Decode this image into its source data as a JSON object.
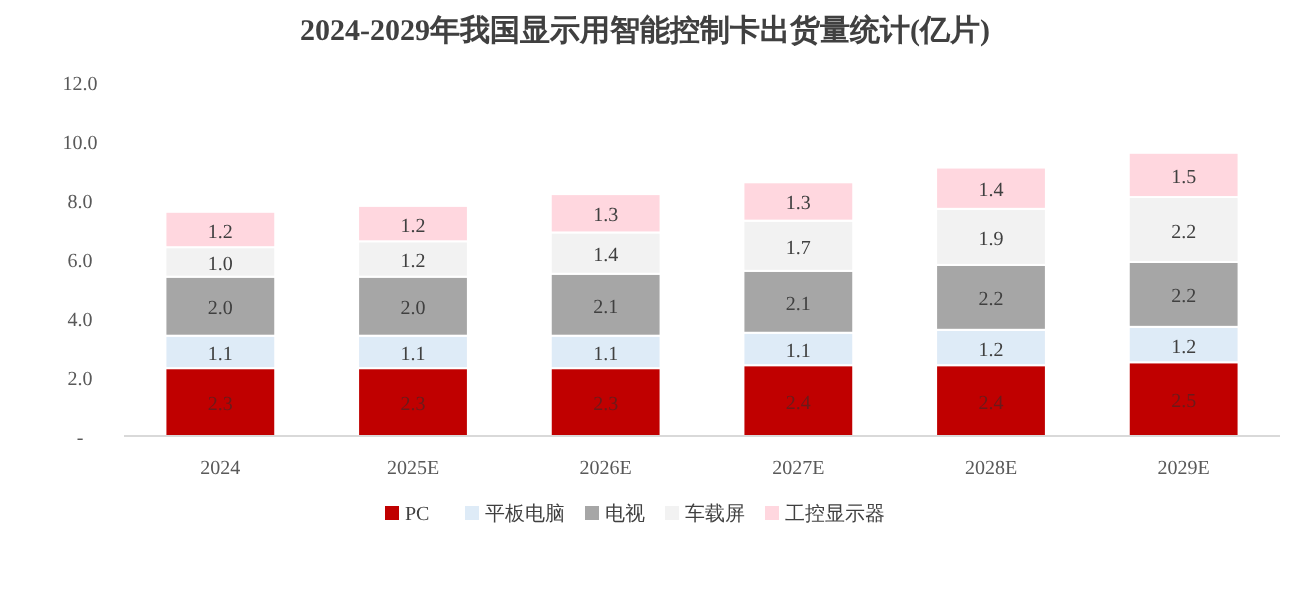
{
  "chart_data": {
    "type": "bar",
    "stacked": true,
    "title": "2024-2029年我国显示用智能控制卡出货量统计(亿片)",
    "categories": [
      "2024",
      "2025E",
      "2026E",
      "2027E",
      "2028E",
      "2029E"
    ],
    "series": [
      {
        "name": "PC",
        "color": "#c00000",
        "values": [
          2.3,
          2.3,
          2.3,
          2.4,
          2.4,
          2.5
        ],
        "value_labels": [
          "2.3",
          "2.3",
          "2.3",
          "2.4",
          "2.4",
          "2.5"
        ]
      },
      {
        "name": "平板电脑",
        "color": "#deebf7",
        "values": [
          1.1,
          1.1,
          1.1,
          1.1,
          1.2,
          1.2
        ],
        "value_labels": [
          "1.1",
          "1.1",
          "1.1",
          "1.1",
          "1.2",
          "1.2"
        ]
      },
      {
        "name": "电视",
        "color": "#a6a6a6",
        "values": [
          2.0,
          2.0,
          2.1,
          2.1,
          2.2,
          2.2
        ],
        "value_labels": [
          "2.0",
          "2.0",
          "2.1",
          "2.1",
          "2.2",
          "2.2"
        ]
      },
      {
        "name": "车载屏",
        "color": "#f2f2f2",
        "values": [
          1.0,
          1.2,
          1.4,
          1.7,
          1.9,
          2.2
        ],
        "value_labels": [
          "1.0",
          "1.2",
          "1.4",
          "1.7",
          "1.9",
          "2.2"
        ]
      },
      {
        "name": "工控显示器",
        "color": "#ffd7df",
        "values": [
          1.2,
          1.2,
          1.3,
          1.3,
          1.4,
          1.5
        ],
        "value_labels": [
          "1.2",
          "1.2",
          "1.3",
          "1.3",
          "1.4",
          "1.5"
        ]
      }
    ],
    "ylim": [
      0,
      12
    ],
    "yticks": [
      {
        "value": 0,
        "label": "-"
      },
      {
        "value": 2,
        "label": "2.0"
      },
      {
        "value": 4,
        "label": "4.0"
      },
      {
        "value": 6,
        "label": "6.0"
      },
      {
        "value": 8,
        "label": "8.0"
      },
      {
        "value": 10,
        "label": "10.0"
      },
      {
        "value": 12,
        "label": "12.0"
      }
    ],
    "grid": false,
    "legend": "bottom"
  }
}
